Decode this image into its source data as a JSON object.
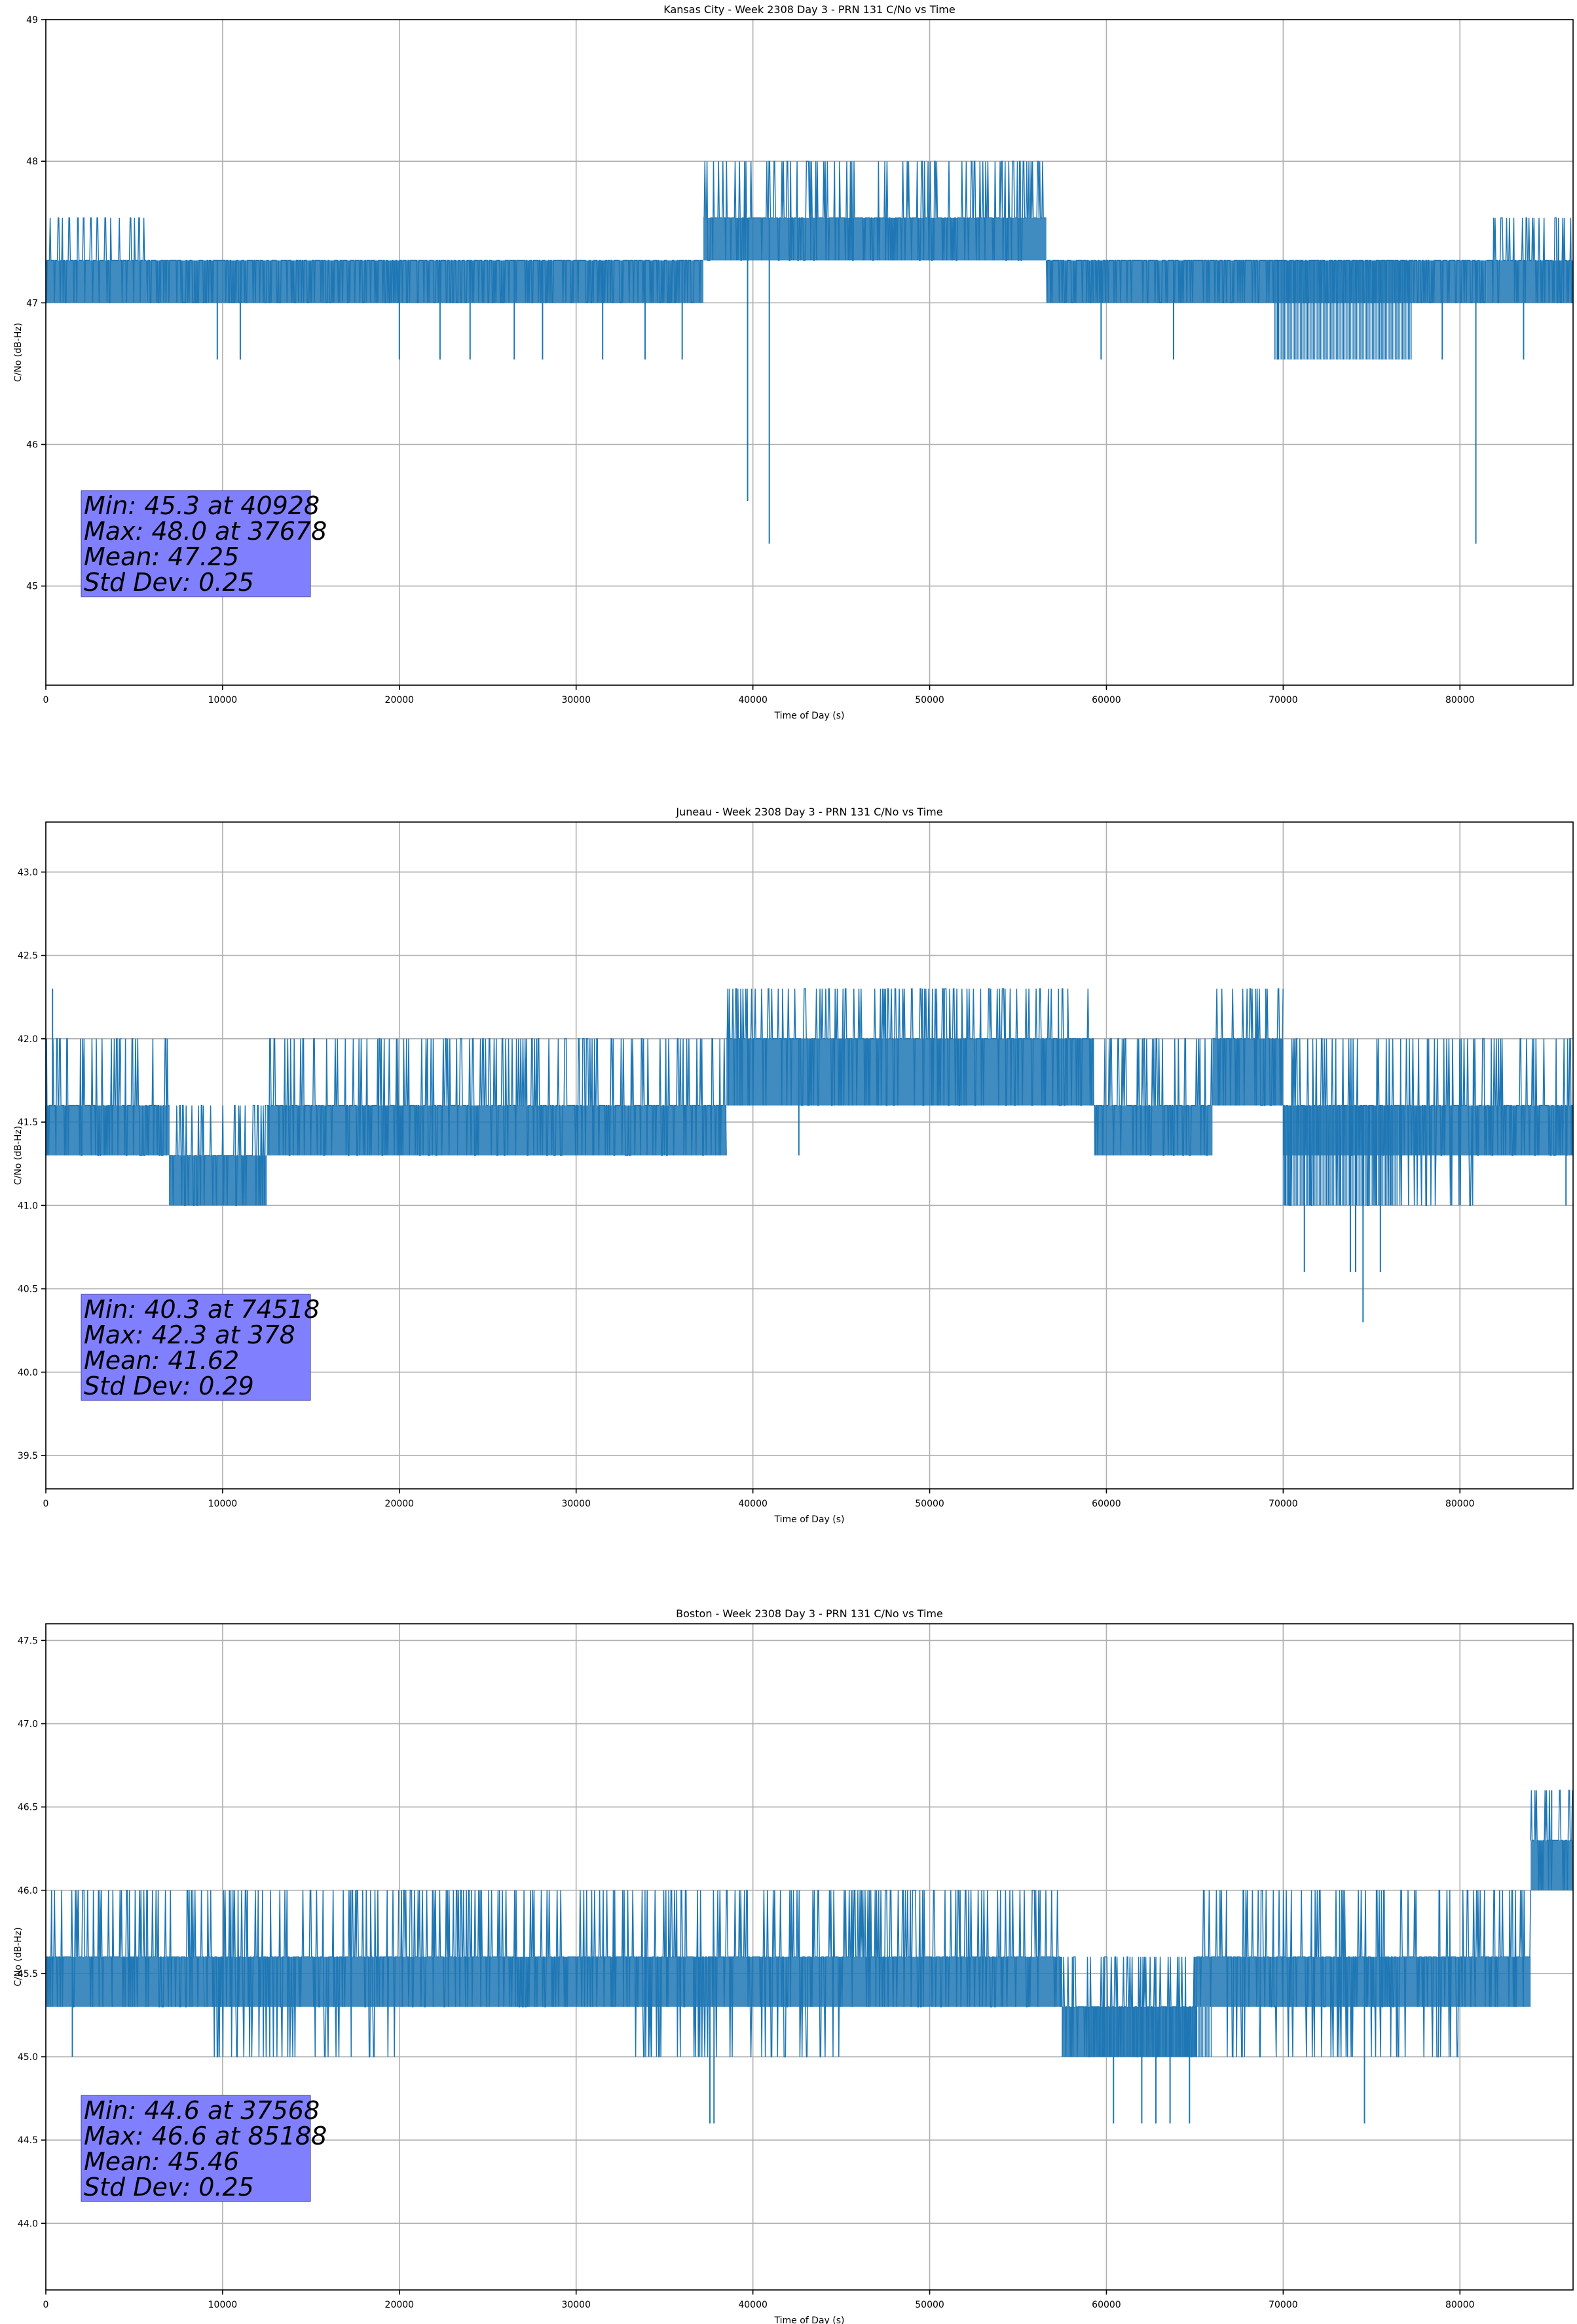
{
  "colors": {
    "line": "#1f77b4",
    "grid": "#b0b0b0",
    "stats_box": "#8080ff",
    "axis": "#000000"
  },
  "chart_data": [
    {
      "type": "line",
      "title": "Kansas City - Week 2308 Day 3 - PRN 131 C/No vs Time",
      "xlabel": "Time of Day (s)",
      "ylabel": "C/No (dB-Hz)",
      "xlim": [
        0,
        86400
      ],
      "ylim": [
        44.3,
        49.0
      ],
      "xticks": [
        0,
        10000,
        20000,
        30000,
        40000,
        50000,
        60000,
        70000,
        80000
      ],
      "xtick_labels": [
        "0",
        "10000",
        "20000",
        "30000",
        "40000",
        "50000",
        "60000",
        "70000",
        "80000"
      ],
      "yticks": [
        45,
        46,
        47,
        48,
        49
      ],
      "ytick_labels": [
        "45",
        "46",
        "47",
        "48",
        "49"
      ],
      "grid": true,
      "series": [
        {
          "name": "C/No",
          "segments": [
            {
              "x0": 0,
              "x1": 5700,
              "base": 47.3,
              "levels": [
                47.0,
                47.3,
                47.6
              ]
            },
            {
              "x0": 5700,
              "x1": 37200,
              "base": 47.3,
              "levels": [
                47.0,
                47.3
              ]
            },
            {
              "x0": 37200,
              "x1": 47300,
              "base": 47.6,
              "levels": [
                47.3,
                47.6,
                48.0
              ]
            },
            {
              "x0": 47300,
              "x1": 56600,
              "base": 47.6,
              "levels": [
                47.3,
                47.6,
                48.0
              ]
            },
            {
              "x0": 56600,
              "x1": 81500,
              "base": 47.3,
              "levels": [
                47.0,
                47.3
              ]
            },
            {
              "x0": 81500,
              "x1": 86400,
              "base": 47.3,
              "levels": [
                47.0,
                47.3,
                47.6
              ]
            }
          ],
          "dips": [
            {
              "x": 9700,
              "y": 46.6
            },
            {
              "x": 11000,
              "y": 46.6
            },
            {
              "x": 20000,
              "y": 46.6
            },
            {
              "x": 22300,
              "y": 46.6
            },
            {
              "x": 24000,
              "y": 46.6
            },
            {
              "x": 26500,
              "y": 46.6
            },
            {
              "x": 28100,
              "y": 46.6
            },
            {
              "x": 31500,
              "y": 46.6
            },
            {
              "x": 33900,
              "y": 46.6
            },
            {
              "x": 36000,
              "y": 46.6
            },
            {
              "x": 39700,
              "y": 45.6
            },
            {
              "x": 40928,
              "y": 45.3
            },
            {
              "x": 59700,
              "y": 46.6
            },
            {
              "x": 63800,
              "y": 46.6
            },
            {
              "x": 69700,
              "y": 46.6
            },
            {
              "x": 75600,
              "y": 46.6
            },
            {
              "x": 79000,
              "y": 46.6
            },
            {
              "x": 80900,
              "y": 45.3
            },
            {
              "x": 83600,
              "y": 46.6
            }
          ],
          "dense_low": [
            {
              "x0": 69500,
              "x1": 77300,
              "level": 46.6
            }
          ]
        }
      ],
      "stats": {
        "min": "Min: 45.3 at 40928",
        "max": "Max: 48.0 at 37678",
        "mean": "Mean: 47.25",
        "std": "Std Dev: 0.25"
      }
    },
    {
      "type": "line",
      "title": "Juneau - Week 2308 Day 3 - PRN 131 C/No vs Time",
      "xlabel": "Time of Day (s)",
      "ylabel": "C/No (dB-Hz)",
      "xlim": [
        0,
        86400
      ],
      "ylim": [
        39.3,
        43.3
      ],
      "xticks": [
        0,
        10000,
        20000,
        30000,
        40000,
        50000,
        60000,
        70000,
        80000
      ],
      "xtick_labels": [
        "0",
        "10000",
        "20000",
        "30000",
        "40000",
        "50000",
        "60000",
        "70000",
        "80000"
      ],
      "yticks": [
        39.5,
        40.0,
        40.5,
        41.0,
        41.5,
        42.0,
        42.5,
        43.0
      ],
      "ytick_labels": [
        "39.5",
        "40.0",
        "40.5",
        "41.0",
        "41.5",
        "42.0",
        "42.5",
        "43.0"
      ],
      "grid": true,
      "series": [
        {
          "name": "C/No",
          "segments": [
            {
              "x0": 0,
              "x1": 4300,
              "base": 41.6,
              "levels": [
                41.3,
                41.6,
                42.0
              ]
            },
            {
              "x0": 4300,
              "x1": 7000,
              "base": 41.6,
              "levels": [
                41.3,
                41.6,
                42.0
              ]
            },
            {
              "x0": 7000,
              "x1": 12500,
              "base": 41.3,
              "levels": [
                41.0,
                41.3,
                41.6
              ]
            },
            {
              "x0": 12500,
              "x1": 23200,
              "base": 41.6,
              "levels": [
                41.3,
                41.6,
                42.0
              ]
            },
            {
              "x0": 23200,
              "x1": 31000,
              "base": 41.6,
              "levels": [
                41.3,
                41.6,
                42.0
              ]
            },
            {
              "x0": 31000,
              "x1": 38500,
              "base": 41.6,
              "levels": [
                41.3,
                41.6,
                42.0
              ]
            },
            {
              "x0": 38500,
              "x1": 59300,
              "base": 42.0,
              "levels": [
                41.6,
                42.0,
                42.3
              ]
            },
            {
              "x0": 59300,
              "x1": 66000,
              "base": 41.6,
              "levels": [
                41.3,
                41.6,
                42.0
              ]
            },
            {
              "x0": 66000,
              "x1": 70000,
              "base": 42.0,
              "levels": [
                41.6,
                42.0,
                42.3
              ]
            },
            {
              "x0": 70000,
              "x1": 81000,
              "base": 41.6,
              "levels": [
                41.0,
                41.3,
                41.6,
                42.0
              ]
            },
            {
              "x0": 81000,
              "x1": 86400,
              "base": 41.6,
              "levels": [
                41.3,
                41.6,
                42.0
              ]
            }
          ],
          "dips": [
            {
              "x": 378,
              "y": 42.3
            },
            {
              "x": 42600,
              "y": 41.3
            },
            {
              "x": 71200,
              "y": 40.6
            },
            {
              "x": 73800,
              "y": 40.6
            },
            {
              "x": 74100,
              "y": 40.6
            },
            {
              "x": 74518,
              "y": 40.3
            },
            {
              "x": 75500,
              "y": 40.6
            },
            {
              "x": 86000,
              "y": 41.0
            }
          ],
          "dense_low": [
            {
              "x0": 70000,
              "x1": 76500,
              "level": 41.0
            }
          ]
        }
      ],
      "stats": {
        "min": "Min: 40.3 at 74518",
        "max": "Max: 42.3 at 378",
        "mean": "Mean: 41.62",
        "std": "Std Dev: 0.29"
      }
    },
    {
      "type": "line",
      "title": "Boston - Week 2308 Day 3 - PRN 131 C/No vs Time",
      "xlabel": "Time of Day (s)",
      "ylabel": "C/No (dB-Hz)",
      "xlim": [
        0,
        86400
      ],
      "ylim": [
        43.6,
        47.6
      ],
      "xticks": [
        0,
        10000,
        20000,
        30000,
        40000,
        50000,
        60000,
        70000,
        80000
      ],
      "xtick_labels": [
        "0",
        "10000",
        "20000",
        "30000",
        "40000",
        "50000",
        "60000",
        "70000",
        "80000"
      ],
      "yticks": [
        44.0,
        44.5,
        45.0,
        45.5,
        46.0,
        46.5,
        47.0,
        47.5
      ],
      "ytick_labels": [
        "44.0",
        "44.5",
        "45.0",
        "45.5",
        "46.0",
        "46.5",
        "47.0",
        "47.5"
      ],
      "grid": true,
      "series": [
        {
          "name": "C/No",
          "segments": [
            {
              "x0": 0,
              "x1": 9000,
              "base": 45.6,
              "levels": [
                45.3,
                45.6,
                46.0
              ]
            },
            {
              "x0": 9000,
              "x1": 20000,
              "base": 45.6,
              "levels": [
                45.0,
                45.3,
                45.6,
                46.0
              ]
            },
            {
              "x0": 20000,
              "x1": 33000,
              "base": 45.6,
              "levels": [
                45.3,
                45.6,
                46.0
              ]
            },
            {
              "x0": 33000,
              "x1": 45000,
              "base": 45.6,
              "levels": [
                45.0,
                45.3,
                45.6,
                46.0
              ]
            },
            {
              "x0": 45000,
              "x1": 57500,
              "base": 45.6,
              "levels": [
                45.3,
                45.6,
                46.0
              ]
            },
            {
              "x0": 57500,
              "x1": 65000,
              "base": 45.3,
              "levels": [
                45.0,
                45.3,
                45.6
              ]
            },
            {
              "x0": 65000,
              "x1": 80000,
              "base": 45.6,
              "levels": [
                45.0,
                45.3,
                45.6,
                46.0
              ]
            },
            {
              "x0": 80000,
              "x1": 84000,
              "base": 45.6,
              "levels": [
                45.3,
                45.6,
                46.0
              ]
            },
            {
              "x0": 84000,
              "x1": 86400,
              "base": 46.3,
              "levels": [
                46.0,
                46.3,
                46.6
              ]
            }
          ],
          "dips": [
            {
              "x": 1500,
              "y": 45.0
            },
            {
              "x": 37568,
              "y": 44.6
            },
            {
              "x": 37800,
              "y": 44.6
            },
            {
              "x": 60400,
              "y": 44.6
            },
            {
              "x": 62000,
              "y": 44.6
            },
            {
              "x": 62800,
              "y": 44.6
            },
            {
              "x": 63600,
              "y": 44.6
            },
            {
              "x": 64700,
              "y": 44.6
            },
            {
              "x": 74600,
              "y": 44.6
            },
            {
              "x": 85188,
              "y": 46.6
            }
          ],
          "dense_low": [
            {
              "x0": 59000,
              "x1": 66000,
              "level": 45.0
            }
          ]
        }
      ],
      "stats": {
        "min": "Min: 44.6 at 37568",
        "max": "Max: 46.6 at 85188",
        "mean": "Mean: 45.46",
        "std": "Std Dev: 0.25"
      }
    }
  ]
}
